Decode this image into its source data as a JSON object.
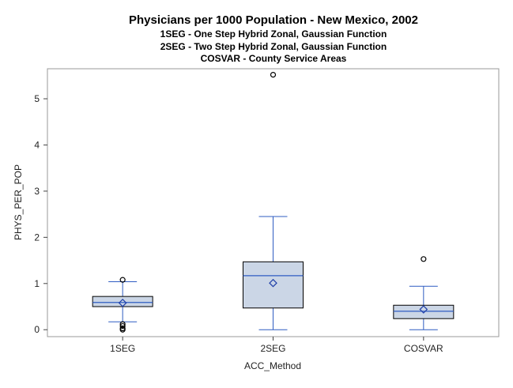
{
  "chart_data": {
    "type": "box",
    "title": "Physicians per 1000 Population - New Mexico, 2002",
    "subtitles": [
      "1SEG - One Step Hybrid Zonal, Gaussian Function",
      "2SEG - Two Step Hybrid Zonal, Gaussian Function",
      "COSVAR - County Service Areas"
    ],
    "xlabel": "ACC_Method",
    "ylabel": "PHYS_PER_POP",
    "ylim": [
      -0.15,
      5.65
    ],
    "yticks": [
      0,
      1,
      2,
      3,
      4,
      5
    ],
    "categories": [
      "1SEG",
      "2SEG",
      "COSVAR"
    ],
    "boxes": [
      {
        "category": "1SEG",
        "whisker_low": 0.17,
        "q1": 0.5,
        "median": 0.59,
        "q3": 0.72,
        "whisker_high": 1.04,
        "mean": 0.58,
        "outliers": [
          0.0,
          0.03,
          0.08,
          0.12,
          1.08
        ]
      },
      {
        "category": "2SEG",
        "whisker_low": 0.0,
        "q1": 0.47,
        "median": 1.17,
        "q3": 1.47,
        "whisker_high": 2.45,
        "mean": 1.01,
        "outliers": [
          5.52
        ]
      },
      {
        "category": "COSVAR",
        "whisker_low": 0.0,
        "q1": 0.24,
        "median": 0.4,
        "q3": 0.53,
        "whisker_high": 0.94,
        "mean": 0.44,
        "outliers": [
          1.53
        ]
      }
    ],
    "colors": {
      "box_fill": "#cbd6e6",
      "box_stroke": "#000000",
      "median": "#2f5cc2",
      "whisker": "#2f5cc2",
      "mean_marker": "#1f3fa8",
      "outlier": "#000000",
      "frame": "#9a9a9a"
    },
    "grid": false,
    "legend": "none"
  }
}
